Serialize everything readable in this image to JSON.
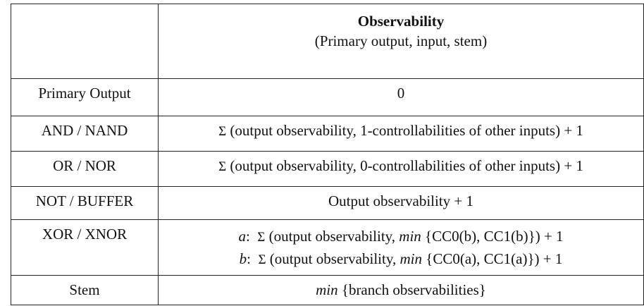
{
  "header": {
    "title": "Observability",
    "subtitle": "(Primary output, input, stem)"
  },
  "rows": [
    {
      "label": "Primary Output",
      "value": "0"
    },
    {
      "label": "AND / NAND",
      "value": "(output observability, 1-controllabilities of other inputs) + 1"
    },
    {
      "label": "OR / NOR",
      "value": "(output observability, 0-controllabilities of other inputs) + 1"
    },
    {
      "label": "NOT / BUFFER",
      "value": "Output observability + 1"
    },
    {
      "label": "XOR / XNOR",
      "a_var": "a",
      "a_text": "(output observability, ",
      "a_min": "min",
      "a_rest": "{CC0(b), CC1(b)}) + 1",
      "b_var": "b",
      "b_text": "(output observability, ",
      "b_min": "min",
      "b_rest": "{CC0(a), CC1(a)}) + 1"
    },
    {
      "label": "Stem",
      "min": "min",
      "value": "{branch observabilities}"
    }
  ],
  "symbols": {
    "sigma": "Σ"
  }
}
